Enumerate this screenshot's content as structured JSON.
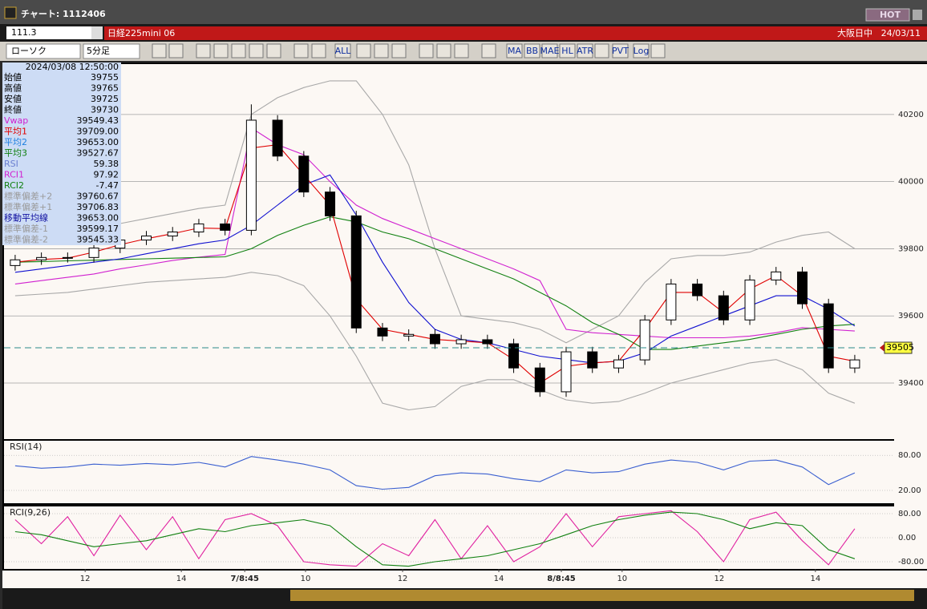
{
  "window": {
    "title": "チャート: 1112406",
    "hot": "HOT"
  },
  "toolbar": {
    "code": "111.3",
    "instrument": "日経225mini 06",
    "market": "大阪日中",
    "date": "24/03/11",
    "chart_type": "ローソク",
    "interval": "5分足",
    "buttons": [
      "ALL",
      "MA",
      "BB",
      "MAE",
      "HL",
      "ATR",
      "PVT",
      "Log"
    ]
  },
  "info_panel": {
    "datetime": "2024/03/08 12:50:00",
    "rows": [
      {
        "label": "始値",
        "value": "39755",
        "color": "#000000"
      },
      {
        "label": "高値",
        "value": "39765",
        "color": "#000000"
      },
      {
        "label": "安値",
        "value": "39725",
        "color": "#000000"
      },
      {
        "label": "終値",
        "value": "39730",
        "color": "#000000"
      },
      {
        "label": "Vwap",
        "value": "39549.43",
        "color": "#d020d0"
      },
      {
        "label": "平均1",
        "value": "39709.00",
        "color": "#e00000"
      },
      {
        "label": "平均2",
        "value": "39653.00",
        "color": "#1e7fe0"
      },
      {
        "label": "平均3",
        "value": "39527.67",
        "color": "#108010"
      },
      {
        "label": "RSI",
        "value": "59.38",
        "color": "#6a7fd0"
      },
      {
        "label": "RCI1",
        "value": "97.92",
        "color": "#d020d0"
      },
      {
        "label": "RCI2",
        "value": "-7.47",
        "color": "#108010"
      },
      {
        "label": "標準偏差+2",
        "value": "39760.67",
        "color": "#9a9a9a"
      },
      {
        "label": "標準偏差+1",
        "value": "39706.83",
        "color": "#9a9a9a"
      },
      {
        "label": "移動平均線",
        "value": "39653.00",
        "color": "#1010a0"
      },
      {
        "label": "標準偏差-1",
        "value": "39599.17",
        "color": "#9a9a9a"
      },
      {
        "label": "標準偏差-2",
        "value": "39545.33",
        "color": "#9a9a9a"
      }
    ]
  },
  "chart_data": [
    {
      "type": "candlestick",
      "x": [
        2,
        8,
        14,
        20,
        26,
        32,
        38,
        44,
        50,
        56,
        62,
        68,
        74,
        80,
        86,
        92,
        98,
        104,
        110,
        116,
        122,
        128,
        134,
        140,
        146,
        152,
        158,
        164,
        170,
        176,
        182,
        188,
        194
      ],
      "xlim": [
        0,
        203
      ],
      "ylim": [
        39233,
        40350
      ],
      "yticks": [
        39400,
        39600,
        39800,
        40000,
        40200
      ],
      "open": [
        39750,
        39767,
        39774,
        39774,
        39802,
        39826,
        39838,
        39850,
        39874,
        39855,
        40183,
        40076,
        39969,
        39898,
        39564,
        39540,
        39545,
        39517,
        39529,
        39517,
        39445,
        39374,
        39493,
        39445,
        39469,
        39588,
        39695,
        39660,
        39588,
        39707,
        39731,
        39636,
        39445
      ],
      "high": [
        39782,
        39789,
        39789,
        39817,
        39841,
        39853,
        39865,
        39889,
        39889,
        40230,
        40198,
        40091,
        39984,
        39913,
        39579,
        39560,
        39560,
        39544,
        39544,
        39532,
        39460,
        39508,
        39508,
        39484,
        39603,
        39710,
        39710,
        39675,
        39722,
        39746,
        39746,
        39651,
        39484
      ],
      "low": [
        39735,
        39752,
        39759,
        39759,
        39787,
        39811,
        39823,
        39835,
        39840,
        39840,
        40061,
        39954,
        39883,
        39549,
        39525,
        39525,
        39502,
        39502,
        39502,
        39430,
        39359,
        39359,
        39430,
        39430,
        39454,
        39573,
        39645,
        39573,
        39573,
        39692,
        39621,
        39430,
        39430
      ],
      "close": [
        39767,
        39774,
        39774,
        39802,
        39826,
        39838,
        39850,
        39874,
        39855,
        40183,
        40076,
        39969,
        39898,
        39564,
        39540,
        39545,
        39517,
        39529,
        39517,
        39445,
        39374,
        39493,
        39445,
        39469,
        39588,
        39695,
        39660,
        39588,
        39707,
        39731,
        39636,
        39445,
        39469
      ],
      "series": [
        {
          "color": "#a8a8a8",
          "values": [
            39840,
            39845,
            39850,
            39860,
            39875,
            39890,
            39905,
            39920,
            39930,
            40200,
            40250,
            40280,
            40300,
            40300,
            40200,
            40050,
            39800,
            39600,
            39590,
            39580,
            39560,
            39520,
            39560,
            39600,
            39700,
            39770,
            39780,
            39780,
            39790,
            39820,
            39840,
            39850,
            39800
          ]
        },
        {
          "color": "#a8a8a8",
          "values": [
            39660,
            39665,
            39670,
            39680,
            39690,
            39700,
            39705,
            39710,
            39715,
            39730,
            39720,
            39690,
            39600,
            39480,
            39340,
            39320,
            39330,
            39390,
            39410,
            39410,
            39380,
            39350,
            39340,
            39345,
            39370,
            39400,
            39420,
            39440,
            39460,
            39470,
            39440,
            39370,
            39340
          ]
        },
        {
          "color": "#d020d0",
          "values": [
            39695,
            39705,
            39715,
            39725,
            39740,
            39752,
            39765,
            39775,
            39783,
            40160,
            40110,
            40080,
            40000,
            39930,
            39890,
            39860,
            39830,
            39800,
            39770,
            39740,
            39705,
            39560,
            39550,
            39545,
            39540,
            39535,
            39535,
            39535,
            39540,
            39550,
            39565,
            39560,
            39555
          ]
        },
        {
          "color": "#108010",
          "values": [
            39760,
            39762,
            39764,
            39766,
            39768,
            39770,
            39772,
            39774,
            39776,
            39800,
            39840,
            39870,
            39895,
            39880,
            39850,
            39830,
            39800,
            39770,
            39740,
            39710,
            39670,
            39630,
            39580,
            39545,
            39500,
            39500,
            39510,
            39520,
            39530,
            39545,
            39560,
            39570,
            39575
          ]
        },
        {
          "color": "#1010d0",
          "values": [
            39730,
            39740,
            39750,
            39760,
            39770,
            39785,
            39800,
            39815,
            39826,
            39870,
            39930,
            39990,
            40020,
            39900,
            39760,
            39640,
            39560,
            39530,
            39520,
            39500,
            39480,
            39470,
            39460,
            39465,
            39490,
            39540,
            39570,
            39600,
            39630,
            39660,
            39660,
            39620,
            39570
          ]
        },
        {
          "color": "#e00000",
          "values": [
            39760,
            39768,
            39772,
            39790,
            39812,
            39830,
            39845,
            39862,
            39860,
            40100,
            40110,
            40020,
            39930,
            39650,
            39560,
            39545,
            39530,
            39525,
            39520,
            39470,
            39400,
            39450,
            39460,
            39465,
            39560,
            39670,
            39670,
            39610,
            39680,
            39720,
            39660,
            39480,
            39465
          ]
        }
      ],
      "last_price": 39505
    },
    {
      "type": "line",
      "title": "RSI(14)",
      "x": [
        2,
        8,
        14,
        20,
        26,
        32,
        38,
        44,
        50,
        56,
        62,
        68,
        74,
        80,
        86,
        92,
        98,
        104,
        110,
        116,
        122,
        128,
        134,
        140,
        146,
        152,
        158,
        164,
        170,
        176,
        182,
        188,
        194
      ],
      "xlim": [
        0,
        203
      ],
      "ylim": [
        -2,
        105
      ],
      "yticks": [
        {
          "value": 80,
          "label": "80.00"
        },
        {
          "value": 20,
          "label": "20.00"
        }
      ],
      "series": [
        {
          "color": "#3a5fd0",
          "values": [
            62,
            58,
            60,
            65,
            63,
            66,
            64,
            68,
            60,
            78,
            72,
            65,
            55,
            28,
            22,
            25,
            45,
            50,
            48,
            40,
            35,
            55,
            50,
            52,
            65,
            72,
            68,
            55,
            70,
            72,
            60,
            30,
            50
          ]
        }
      ]
    },
    {
      "type": "line",
      "title": "RCI(9,26)",
      "x": [
        2,
        8,
        14,
        20,
        26,
        32,
        38,
        44,
        50,
        56,
        62,
        68,
        74,
        80,
        86,
        92,
        98,
        104,
        110,
        116,
        122,
        128,
        134,
        140,
        146,
        152,
        158,
        164,
        170,
        176,
        182,
        188,
        194
      ],
      "xlim": [
        0,
        203
      ],
      "ylim": [
        -104,
        104
      ],
      "yticks": [
        {
          "value": 80,
          "label": "80.00"
        },
        {
          "value": 0,
          "label": "0.00"
        },
        {
          "value": -80,
          "label": "-80.00"
        }
      ],
      "xticks": [
        {
          "value": 18,
          "label": "12"
        },
        {
          "value": 40,
          "label": "14"
        },
        {
          "value": 54.5,
          "label": "7/8:45"
        },
        {
          "value": 68.4,
          "label": "10"
        },
        {
          "value": 90.6,
          "label": "12"
        },
        {
          "value": 112.6,
          "label": "14"
        },
        {
          "value": 126.9,
          "label": "8/8:45"
        },
        {
          "value": 140.8,
          "label": "10"
        },
        {
          "value": 163,
          "label": "12"
        },
        {
          "value": 185,
          "label": "14"
        }
      ],
      "series": [
        {
          "color": "#e020a0",
          "values": [
            60,
            -20,
            70,
            -60,
            75,
            -40,
            70,
            -70,
            60,
            80,
            40,
            -80,
            -90,
            -95,
            -20,
            -60,
            60,
            -70,
            40,
            -80,
            -30,
            80,
            -30,
            70,
            80,
            90,
            20,
            -80,
            60,
            85,
            -10,
            -90,
            30
          ]
        },
        {
          "color": "#108010",
          "values": [
            20,
            10,
            -10,
            -30,
            -20,
            -10,
            10,
            30,
            20,
            40,
            50,
            60,
            40,
            -30,
            -90,
            -95,
            -80,
            -70,
            -60,
            -40,
            -20,
            10,
            40,
            60,
            75,
            85,
            80,
            60,
            30,
            50,
            40,
            -40,
            -70
          ]
        }
      ]
    }
  ]
}
